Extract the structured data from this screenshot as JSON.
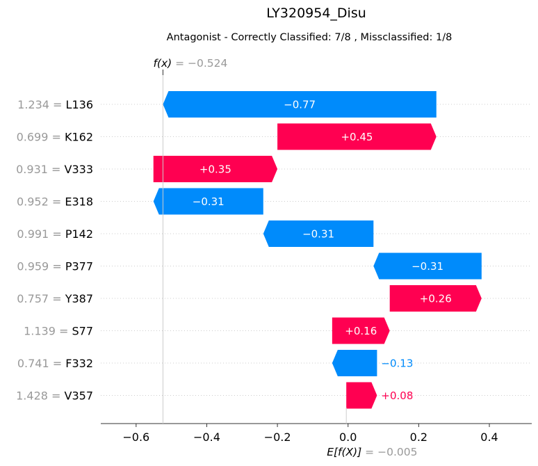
{
  "chart_data": {
    "type": "waterfall",
    "title": "LY320954_Disu",
    "subtitle": "Antagonist - Correctly Classified: 7/8 , Missclassified: 1/8",
    "fx": {
      "prefix": "f(x)",
      "value_text": " = −0.524",
      "value": -0.524
    },
    "efx": {
      "prefix": "E[f(X)]",
      "value_text": " = −0.005",
      "value": -0.005
    },
    "xlim": [
      -0.7,
      0.52
    ],
    "xticks": [
      -0.6,
      -0.4,
      -0.2,
      0.0,
      0.2,
      0.4
    ],
    "xtick_labels": [
      "−0.6",
      "−0.4",
      "−0.2",
      "0.0",
      "0.2",
      "0.4"
    ],
    "features": [
      {
        "value": "1.234 = ",
        "name": "L136",
        "start": 0.25,
        "end": -0.524,
        "label": "−0.77"
      },
      {
        "value": "0.699 = ",
        "name": "K162",
        "start": -0.2,
        "end": 0.25,
        "label": "+0.45"
      },
      {
        "value": "0.931 = ",
        "name": "V333",
        "start": -0.551,
        "end": -0.2,
        "label": "+0.35"
      },
      {
        "value": "0.952 = ",
        "name": "E318",
        "start": -0.24,
        "end": -0.551,
        "label": "−0.31"
      },
      {
        "value": "0.991 = ",
        "name": "P142",
        "start": 0.072,
        "end": -0.24,
        "label": "−0.31"
      },
      {
        "value": "0.959 = ",
        "name": "P377",
        "start": 0.378,
        "end": 0.072,
        "label": "−0.31"
      },
      {
        "value": "0.757 = ",
        "name": "Y387",
        "start": 0.118,
        "end": 0.378,
        "label": "+0.26"
      },
      {
        "value": "1.139 = ",
        "name": "S77",
        "start": -0.045,
        "end": 0.118,
        "label": "+0.16"
      },
      {
        "value": "0.741 = ",
        "name": "F332",
        "start": 0.082,
        "end": -0.045,
        "label": "−0.13"
      },
      {
        "value": "1.428 = ",
        "name": "V357",
        "start": -0.005,
        "end": 0.082,
        "label": "+0.08"
      }
    ],
    "colors": {
      "positive": "#ff0051",
      "negative": "#008bfb",
      "muted": "#999999",
      "grid": "#cccccc"
    },
    "grid": false
  }
}
